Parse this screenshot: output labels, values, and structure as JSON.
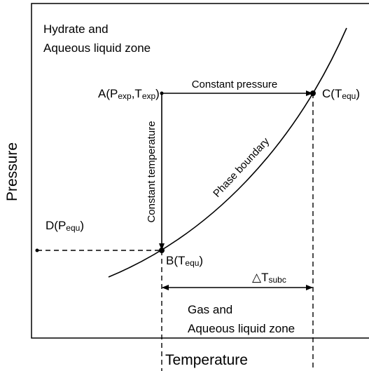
{
  "axes": {
    "x_label": "Temperature",
    "y_label": "Pressure"
  },
  "zones": {
    "upper": [
      "Hydrate and",
      "Aqueous liquid zone"
    ],
    "lower": [
      "Gas and",
      "Aqueous liquid zone"
    ]
  },
  "points": {
    "a": {
      "head": "A(P",
      "sub1": "exp",
      "mid": ",T",
      "sub2": "exp",
      "tail": ")"
    },
    "b": {
      "head": "B(T",
      "sub": "equ",
      "tail": ")"
    },
    "c": {
      "head": "C(T",
      "sub": "equ",
      "tail": ")"
    },
    "d": {
      "head": "D(P",
      "sub": "equ",
      "tail": ")"
    }
  },
  "paths": {
    "constant_pressure": "Constant pressure",
    "constant_temperature": "Constant temperature",
    "phase_boundary": "Phase boundary"
  },
  "subcooling": {
    "head": "△T",
    "sub": "subc"
  }
}
